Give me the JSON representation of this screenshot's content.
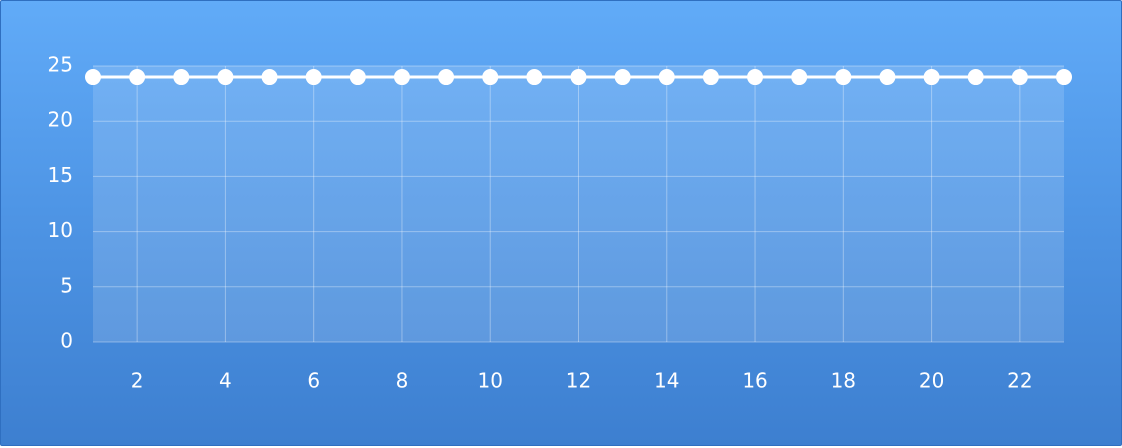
{
  "chart_data": {
    "type": "line",
    "title": "",
    "xlabel": "",
    "ylabel": "",
    "x": [
      1,
      2,
      3,
      4,
      5,
      6,
      7,
      8,
      9,
      10,
      11,
      12,
      13,
      14,
      15,
      16,
      17,
      18,
      19,
      20,
      21,
      22,
      23
    ],
    "series": [
      {
        "values": [
          24,
          24,
          24,
          24,
          24,
          24,
          24,
          24,
          24,
          24,
          24,
          24,
          24,
          24,
          24,
          24,
          24,
          24,
          24,
          24,
          24,
          24,
          24
        ],
        "color": "#ffffff"
      }
    ],
    "x_ticks": [
      "2",
      "4",
      "6",
      "8",
      "10",
      "12",
      "14",
      "16",
      "18",
      "20",
      "22"
    ],
    "x_tick_values": [
      2,
      4,
      6,
      8,
      10,
      12,
      14,
      16,
      18,
      20,
      22
    ],
    "y_ticks": [
      "0",
      "5",
      "10",
      "15",
      "20",
      "25"
    ],
    "y_tick_values": [
      0,
      5,
      10,
      15,
      20,
      25
    ],
    "xlim": [
      1,
      23
    ],
    "ylim": [
      0,
      25
    ],
    "grid": true,
    "legend": "none",
    "colors": {
      "background_top": "#61abf8",
      "background_bottom": "#3d7fd0",
      "plot_area": "#ffffff",
      "grid": "#ffffff",
      "line": "#ffffff",
      "text": "#ffffff"
    }
  }
}
